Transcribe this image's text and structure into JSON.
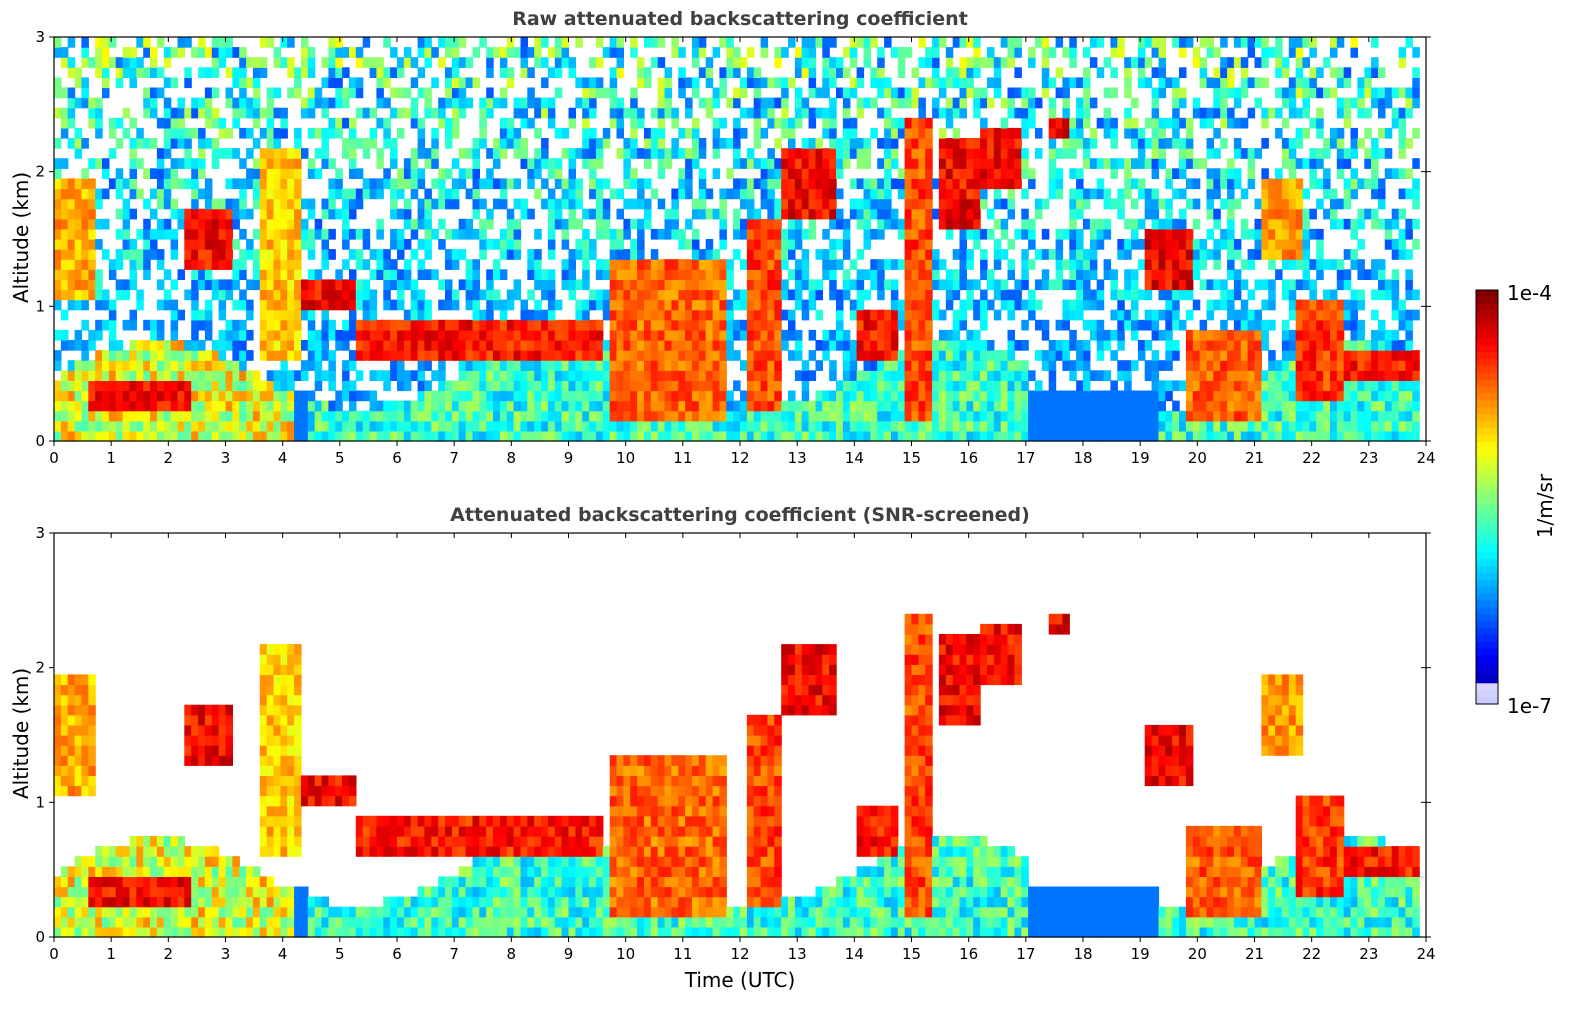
{
  "chart_data": [
    {
      "type": "heatmap",
      "title": "Raw attenuated backscattering coefficient",
      "xlabel": "",
      "ylabel": "Altitude (km)",
      "xlim": [
        0,
        24
      ],
      "ylim": [
        0,
        3
      ],
      "xticks": [
        "0",
        "1",
        "2",
        "3",
        "4",
        "5",
        "6",
        "7",
        "8",
        "9",
        "10",
        "11",
        "12",
        "13",
        "14",
        "15",
        "16",
        "17",
        "18",
        "19",
        "20",
        "21",
        "22",
        "23",
        "24"
      ],
      "yticks": [
        "0",
        "1",
        "2",
        "3"
      ],
      "screened": false
    },
    {
      "type": "heatmap",
      "title": "Attenuated backscattering coefficient (SNR-screened)",
      "xlabel": "Time (UTC)",
      "ylabel": "Altitude (km)",
      "xlim": [
        0,
        24
      ],
      "ylim": [
        0,
        3
      ],
      "xticks": [
        "0",
        "1",
        "2",
        "3",
        "4",
        "5",
        "6",
        "7",
        "8",
        "9",
        "10",
        "11",
        "12",
        "13",
        "14",
        "15",
        "16",
        "17",
        "18",
        "19",
        "20",
        "21",
        "22",
        "23",
        "24"
      ],
      "yticks": [
        "0",
        "1",
        "2",
        "3"
      ],
      "screened": true
    }
  ],
  "colorbar": {
    "label": "1/m/sr",
    "max_label": "1e-4",
    "min_label": "1e-7",
    "range": [
      1e-07,
      0.0001
    ],
    "scale": "log",
    "colormap": "jet"
  }
}
